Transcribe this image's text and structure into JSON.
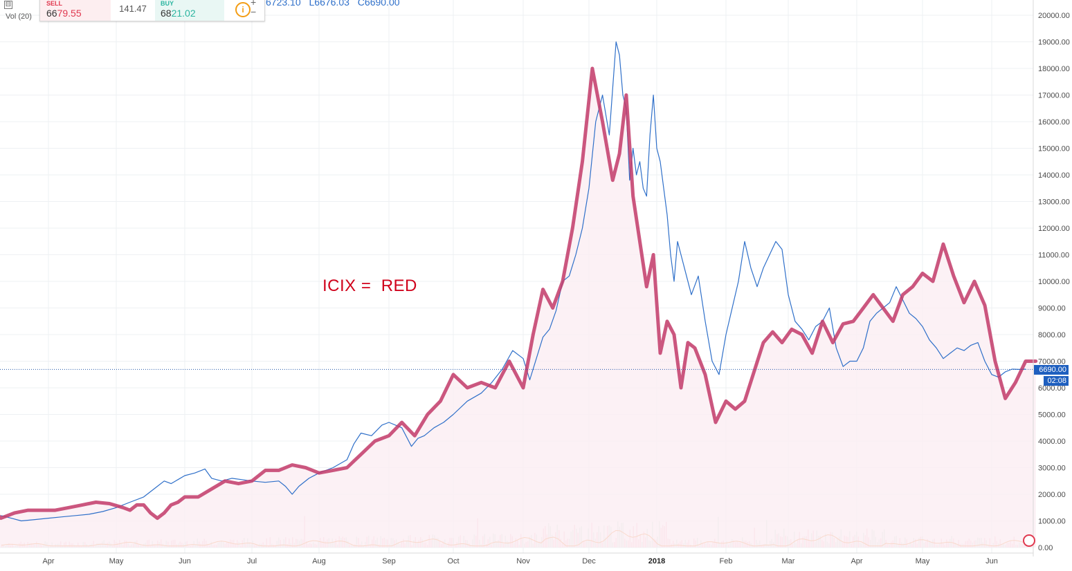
{
  "header": {
    "ohlc": {
      "high": "6723.10",
      "low": "L6676.03",
      "close": "C6690.00"
    },
    "vol_label": "Vol (20)",
    "collapse_symbol": "⊟",
    "zoom_plus": "+",
    "zoom_minus": "−"
  },
  "trade_panel": {
    "sell_title": "SELL",
    "sell_price_prefix": "66",
    "sell_price_main": "79.55",
    "spread": "141.47",
    "buy_title": "BUY",
    "buy_price_prefix": "68",
    "buy_price_main": "21.02",
    "info_icon": "i"
  },
  "annotation": "ICIX =  RED",
  "price_tags": {
    "last_price": "6690.00",
    "countdown": "02:08"
  },
  "colors": {
    "price_line": "#2e6fc9",
    "icix_line": "#c23a68",
    "icix_fill": "#fbeef2",
    "volume_line": "#f08a3a",
    "grid": "#eef0f3",
    "last_price_line": "#2255aa"
  },
  "chart_data": {
    "type": "line",
    "y_axis_side": "right",
    "ylim": [
      0,
      20000
    ],
    "yticks": [
      "20000.00",
      "19000.00",
      "18000.00",
      "17000.00",
      "16000.00",
      "15000.00",
      "14000.00",
      "13000.00",
      "12000.00",
      "11000.00",
      "10000.00",
      "9000.00",
      "8000.00",
      "7000.00",
      "6000.00",
      "5000.00",
      "4000.00",
      "3000.00",
      "2000.00",
      "1000.00",
      "0.00"
    ],
    "xticks": [
      {
        "label": "Apr",
        "t": 2,
        "bold": false
      },
      {
        "label": "May",
        "t": 3,
        "bold": false
      },
      {
        "label": "Jun",
        "t": 4,
        "bold": false
      },
      {
        "label": "Jul",
        "t": 5,
        "bold": false
      },
      {
        "label": "Aug",
        "t": 6,
        "bold": false
      },
      {
        "label": "Sep",
        "t": 7,
        "bold": false
      },
      {
        "label": "Oct",
        "t": 8,
        "bold": false
      },
      {
        "label": "Nov",
        "t": 9,
        "bold": false
      },
      {
        "label": "Dec",
        "t": 10,
        "bold": false
      },
      {
        "label": "2018",
        "t": 11,
        "bold": true
      },
      {
        "label": "Feb",
        "t": 12,
        "bold": false
      },
      {
        "label": "Mar",
        "t": 13,
        "bold": false
      },
      {
        "label": "Apr",
        "t": 14,
        "bold": false
      },
      {
        "label": "May",
        "t": 15,
        "bold": false
      },
      {
        "label": "Jun",
        "t": 16,
        "bold": false
      }
    ],
    "last_price": 6690,
    "series": [
      {
        "key": "price",
        "x": [
          1.3,
          1.45,
          1.6,
          1.8,
          2.0,
          2.2,
          2.4,
          2.6,
          2.8,
          3.0,
          3.2,
          3.4,
          3.6,
          3.7,
          3.8,
          3.9,
          4.0,
          4.15,
          4.3,
          4.4,
          4.55,
          4.7,
          4.85,
          5.0,
          5.2,
          5.4,
          5.5,
          5.6,
          5.7,
          5.85,
          6.0,
          6.2,
          6.4,
          6.5,
          6.6,
          6.75,
          6.9,
          7.0,
          7.2,
          7.35,
          7.45,
          7.55,
          7.7,
          7.85,
          8.0,
          8.2,
          8.4,
          8.55,
          8.7,
          8.85,
          9.0,
          9.1,
          9.2,
          9.3,
          9.4,
          9.5,
          9.6,
          9.7,
          9.8,
          9.9,
          10.0,
          10.1,
          10.2,
          10.3,
          10.4,
          10.45,
          10.5,
          10.55,
          10.6,
          10.65,
          10.7,
          10.75,
          10.8,
          10.85,
          10.9,
          10.95,
          11.0,
          11.05,
          11.1,
          11.15,
          11.2,
          11.25,
          11.3,
          11.35,
          11.4,
          11.5,
          11.6,
          11.7,
          11.8,
          11.9,
          12.0,
          12.1,
          12.2,
          12.3,
          12.4,
          12.5,
          12.6,
          12.7,
          12.8,
          12.9,
          13.0,
          13.1,
          13.2,
          13.3,
          13.4,
          13.5,
          13.6,
          13.7,
          13.8,
          13.9,
          14.0,
          14.1,
          14.2,
          14.3,
          14.4,
          14.5,
          14.6,
          14.7,
          14.8,
          14.9,
          15.0,
          15.1,
          15.2,
          15.3,
          15.4,
          15.5,
          15.6,
          15.7,
          15.8,
          15.9,
          16.0,
          16.1,
          16.2,
          16.3,
          16.4,
          16.5
        ],
        "values": [
          1200,
          1100,
          1000,
          1050,
          1100,
          1150,
          1200,
          1250,
          1350,
          1500,
          1700,
          1900,
          2300,
          2500,
          2400,
          2550,
          2700,
          2800,
          2950,
          2600,
          2500,
          2600,
          2550,
          2500,
          2450,
          2500,
          2300,
          2000,
          2300,
          2600,
          2800,
          3000,
          3300,
          3900,
          4300,
          4200,
          4600,
          4700,
          4500,
          3800,
          4100,
          4200,
          4500,
          4700,
          5000,
          5500,
          5800,
          6200,
          6700,
          7400,
          7100,
          6300,
          7100,
          7900,
          8200,
          8900,
          10000,
          10200,
          11000,
          12000,
          13500,
          16000,
          17000,
          15500,
          19000,
          18500,
          17000,
          16500,
          13800,
          15000,
          14000,
          14500,
          13500,
          13200,
          15500,
          17000,
          15000,
          14500,
          13500,
          12500,
          11000,
          10000,
          11500,
          11000,
          10500,
          9500,
          10200,
          8500,
          7000,
          6500,
          8000,
          9000,
          10000,
          11500,
          10500,
          9800,
          10500,
          11000,
          11500,
          11200,
          9500,
          8500,
          8200,
          7800,
          8300,
          8500,
          9000,
          7500,
          6800,
          7000,
          7000,
          7500,
          8500,
          8800,
          9000,
          9200,
          9800,
          9300,
          8800,
          8600,
          8300,
          7800,
          7500,
          7100,
          7300,
          7500,
          7400,
          7600,
          7700,
          7000,
          6500,
          6400,
          6600,
          6700,
          6690,
          6700
        ],
        "color": "#2e6fc9"
      },
      {
        "key": "icix",
        "x": [
          1.0,
          1.15,
          1.3,
          1.5,
          1.7,
          1.9,
          2.1,
          2.3,
          2.5,
          2.7,
          2.9,
          3.1,
          3.2,
          3.3,
          3.4,
          3.5,
          3.6,
          3.7,
          3.8,
          3.9,
          4.0,
          4.2,
          4.4,
          4.6,
          4.8,
          5.0,
          5.2,
          5.4,
          5.6,
          5.8,
          6.0,
          6.2,
          6.4,
          6.6,
          6.8,
          7.0,
          7.2,
          7.4,
          7.6,
          7.8,
          8.0,
          8.2,
          8.4,
          8.6,
          8.8,
          9.0,
          9.15,
          9.3,
          9.45,
          9.6,
          9.75,
          9.9,
          10.05,
          10.2,
          10.35,
          10.45,
          10.55,
          10.65,
          10.75,
          10.85,
          10.95,
          11.05,
          11.15,
          11.25,
          11.35,
          11.45,
          11.55,
          11.7,
          11.85,
          12.0,
          12.15,
          12.3,
          12.45,
          12.6,
          12.75,
          12.9,
          13.05,
          13.2,
          13.35,
          13.5,
          13.65,
          13.8,
          13.95,
          14.1,
          14.25,
          14.4,
          14.55,
          14.7,
          14.85,
          15.0,
          15.15,
          15.3,
          15.45,
          15.6,
          15.75,
          15.9,
          16.05,
          16.2,
          16.35,
          16.5,
          16.65
        ],
        "values": [
          1600,
          1500,
          1100,
          1300,
          1400,
          1400,
          1400,
          1500,
          1600,
          1700,
          1650,
          1500,
          1400,
          1600,
          1600,
          1300,
          1100,
          1300,
          1600,
          1700,
          1900,
          1900,
          2200,
          2500,
          2400,
          2500,
          2900,
          2900,
          3100,
          3000,
          2800,
          2900,
          3000,
          3500,
          4000,
          4200,
          4700,
          4200,
          5000,
          5500,
          6500,
          6000,
          6200,
          6000,
          7000,
          6000,
          8000,
          9700,
          9000,
          10000,
          12000,
          14500,
          18000,
          16000,
          13800,
          14800,
          17000,
          13200,
          11500,
          9800,
          11000,
          7300,
          8500,
          8000,
          6000,
          7700,
          7500,
          6500,
          4700,
          5500,
          5200,
          5500,
          6600,
          7700,
          8100,
          7700,
          8200,
          8000,
          7300,
          8500,
          7700,
          8400,
          8500,
          9000,
          9500,
          9000,
          8500,
          9500,
          9800,
          10300,
          10000,
          11400,
          10200,
          9200,
          10000,
          9100,
          7000,
          5600,
          6200,
          7000,
          7000
        ],
        "color": "#c23a68"
      }
    ],
    "volume_peak_labels": []
  }
}
